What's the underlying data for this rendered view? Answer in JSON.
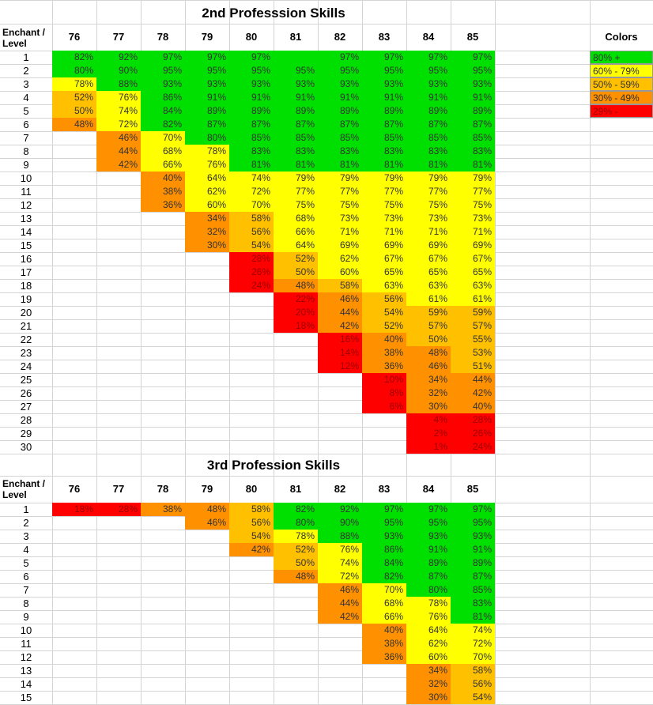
{
  "colors": {
    "green": "#00e000",
    "yellow": "#ffff00",
    "light_orange": "#ffc000",
    "orange": "#ff9000",
    "red": "#ff0000",
    "grid": "#d4d4d4"
  },
  "legend": {
    "title": "Colors",
    "items": [
      "80% +",
      "60% - 79%",
      "50% - 59%",
      "30% - 49%",
      "29% -"
    ]
  },
  "corner_label": "Enchant /\nLevel",
  "levels": [
    "76",
    "77",
    "78",
    "79",
    "80",
    "81",
    "82",
    "83",
    "84",
    "85"
  ],
  "sections": [
    {
      "title": "2nd Professsion Skills",
      "rows": [
        {
          "enchant": "1",
          "cells": [
            "82%",
            "92%",
            "97%",
            "97%",
            "97%",
            "",
            "97%",
            "97%",
            "97%",
            "97%"
          ]
        },
        {
          "enchant": "2",
          "cells": [
            "80%",
            "90%",
            "95%",
            "95%",
            "95%",
            "95%",
            "95%",
            "95%",
            "95%",
            "95%"
          ]
        },
        {
          "enchant": "3",
          "cells": [
            "78%",
            "88%",
            "93%",
            "93%",
            "93%",
            "93%",
            "93%",
            "93%",
            "93%",
            "93%"
          ]
        },
        {
          "enchant": "4",
          "cells": [
            "52%",
            "76%",
            "86%",
            "91%",
            "91%",
            "91%",
            "91%",
            "91%",
            "91%",
            "91%"
          ]
        },
        {
          "enchant": "5",
          "cells": [
            "50%",
            "74%",
            "84%",
            "89%",
            "89%",
            "89%",
            "89%",
            "89%",
            "89%",
            "89%"
          ]
        },
        {
          "enchant": "6",
          "cells": [
            "48%",
            "72%",
            "82%",
            "87%",
            "87%",
            "87%",
            "87%",
            "87%",
            "87%",
            "87%"
          ]
        },
        {
          "enchant": "7",
          "cells": [
            "",
            "46%",
            "70%",
            "80%",
            "85%",
            "85%",
            "85%",
            "85%",
            "85%",
            "85%"
          ]
        },
        {
          "enchant": "8",
          "cells": [
            "",
            "44%",
            "68%",
            "78%",
            "83%",
            "83%",
            "83%",
            "83%",
            "83%",
            "83%"
          ]
        },
        {
          "enchant": "9",
          "cells": [
            "",
            "42%",
            "66%",
            "76%",
            "81%",
            "81%",
            "81%",
            "81%",
            "81%",
            "81%"
          ]
        },
        {
          "enchant": "10",
          "cells": [
            "",
            "",
            "40%",
            "64%",
            "74%",
            "79%",
            "79%",
            "79%",
            "79%",
            "79%"
          ]
        },
        {
          "enchant": "11",
          "cells": [
            "",
            "",
            "38%",
            "62%",
            "72%",
            "77%",
            "77%",
            "77%",
            "77%",
            "77%"
          ]
        },
        {
          "enchant": "12",
          "cells": [
            "",
            "",
            "36%",
            "60%",
            "70%",
            "75%",
            "75%",
            "75%",
            "75%",
            "75%"
          ]
        },
        {
          "enchant": "13",
          "cells": [
            "",
            "",
            "",
            "34%",
            "58%",
            "68%",
            "73%",
            "73%",
            "73%",
            "73%"
          ]
        },
        {
          "enchant": "14",
          "cells": [
            "",
            "",
            "",
            "32%",
            "56%",
            "66%",
            "71%",
            "71%",
            "71%",
            "71%"
          ]
        },
        {
          "enchant": "15",
          "cells": [
            "",
            "",
            "",
            "30%",
            "54%",
            "64%",
            "69%",
            "69%",
            "69%",
            "69%"
          ]
        },
        {
          "enchant": "16",
          "cells": [
            "",
            "",
            "",
            "",
            "28%",
            "52%",
            "62%",
            "67%",
            "67%",
            "67%"
          ]
        },
        {
          "enchant": "17",
          "cells": [
            "",
            "",
            "",
            "",
            "26%",
            "50%",
            "60%",
            "65%",
            "65%",
            "65%"
          ]
        },
        {
          "enchant": "18",
          "cells": [
            "",
            "",
            "",
            "",
            "24%",
            "48%",
            "58%",
            "63%",
            "63%",
            "63%"
          ]
        },
        {
          "enchant": "19",
          "cells": [
            "",
            "",
            "",
            "",
            "",
            "22%",
            "46%",
            "56%",
            "61%",
            "61%"
          ]
        },
        {
          "enchant": "20",
          "cells": [
            "",
            "",
            "",
            "",
            "",
            "20%",
            "44%",
            "54%",
            "59%",
            "59%"
          ]
        },
        {
          "enchant": "21",
          "cells": [
            "",
            "",
            "",
            "",
            "",
            "18%",
            "42%",
            "52%",
            "57%",
            "57%"
          ]
        },
        {
          "enchant": "22",
          "cells": [
            "",
            "",
            "",
            "",
            "",
            "",
            "16%",
            "40%",
            "50%",
            "55%"
          ]
        },
        {
          "enchant": "23",
          "cells": [
            "",
            "",
            "",
            "",
            "",
            "",
            "14%",
            "38%",
            "48%",
            "53%"
          ]
        },
        {
          "enchant": "24",
          "cells": [
            "",
            "",
            "",
            "",
            "",
            "",
            "12%",
            "36%",
            "46%",
            "51%"
          ]
        },
        {
          "enchant": "25",
          "cells": [
            "",
            "",
            "",
            "",
            "",
            "",
            "",
            "10%",
            "34%",
            "44%"
          ]
        },
        {
          "enchant": "26",
          "cells": [
            "",
            "",
            "",
            "",
            "",
            "",
            "",
            "8%",
            "32%",
            "42%"
          ]
        },
        {
          "enchant": "27",
          "cells": [
            "",
            "",
            "",
            "",
            "",
            "",
            "",
            "6%",
            "30%",
            "40%"
          ]
        },
        {
          "enchant": "28",
          "cells": [
            "",
            "",
            "",
            "",
            "",
            "",
            "",
            "",
            "4%",
            "28%"
          ]
        },
        {
          "enchant": "29",
          "cells": [
            "",
            "",
            "",
            "",
            "",
            "",
            "",
            "",
            "2%",
            "26%"
          ]
        },
        {
          "enchant": "30",
          "cells": [
            "",
            "",
            "",
            "",
            "",
            "",
            "",
            "",
            "1%",
            "24%"
          ]
        }
      ]
    },
    {
      "title": "3rd Profession Skills",
      "rows": [
        {
          "enchant": "1",
          "cells": [
            "18%",
            "28%",
            "38%",
            "48%",
            "58%",
            "82%",
            "92%",
            "97%",
            "97%",
            "97%"
          ]
        },
        {
          "enchant": "2",
          "cells": [
            "",
            "",
            "",
            "46%",
            "56%",
            "80%",
            "90%",
            "95%",
            "95%",
            "95%"
          ]
        },
        {
          "enchant": "3",
          "cells": [
            "",
            "",
            "",
            "",
            "54%",
            "78%",
            "88%",
            "93%",
            "93%",
            "93%"
          ]
        },
        {
          "enchant": "4",
          "cells": [
            "",
            "",
            "",
            "",
            "42%",
            "52%",
            "76%",
            "86%",
            "91%",
            "91%"
          ]
        },
        {
          "enchant": "5",
          "cells": [
            "",
            "",
            "",
            "",
            "",
            "50%",
            "74%",
            "84%",
            "89%",
            "89%"
          ]
        },
        {
          "enchant": "6",
          "cells": [
            "",
            "",
            "",
            "",
            "",
            "48%",
            "72%",
            "82%",
            "87%",
            "87%"
          ]
        },
        {
          "enchant": "7",
          "cells": [
            "",
            "",
            "",
            "",
            "",
            "",
            "46%",
            "70%",
            "80%",
            "85%"
          ]
        },
        {
          "enchant": "8",
          "cells": [
            "",
            "",
            "",
            "",
            "",
            "",
            "44%",
            "68%",
            "78%",
            "83%"
          ]
        },
        {
          "enchant": "9",
          "cells": [
            "",
            "",
            "",
            "",
            "",
            "",
            "42%",
            "66%",
            "76%",
            "81%"
          ]
        },
        {
          "enchant": "10",
          "cells": [
            "",
            "",
            "",
            "",
            "",
            "",
            "",
            "40%",
            "64%",
            "74%"
          ]
        },
        {
          "enchant": "11",
          "cells": [
            "",
            "",
            "",
            "",
            "",
            "",
            "",
            "38%",
            "62%",
            "72%"
          ]
        },
        {
          "enchant": "12",
          "cells": [
            "",
            "",
            "",
            "",
            "",
            "",
            "",
            "36%",
            "60%",
            "70%"
          ]
        },
        {
          "enchant": "13",
          "cells": [
            "",
            "",
            "",
            "",
            "",
            "",
            "",
            "",
            "34%",
            "58%"
          ]
        },
        {
          "enchant": "14",
          "cells": [
            "",
            "",
            "",
            "",
            "",
            "",
            "",
            "",
            "32%",
            "56%"
          ]
        },
        {
          "enchant": "15",
          "cells": [
            "",
            "",
            "",
            "",
            "",
            "",
            "",
            "",
            "30%",
            "54%"
          ]
        }
      ]
    }
  ]
}
